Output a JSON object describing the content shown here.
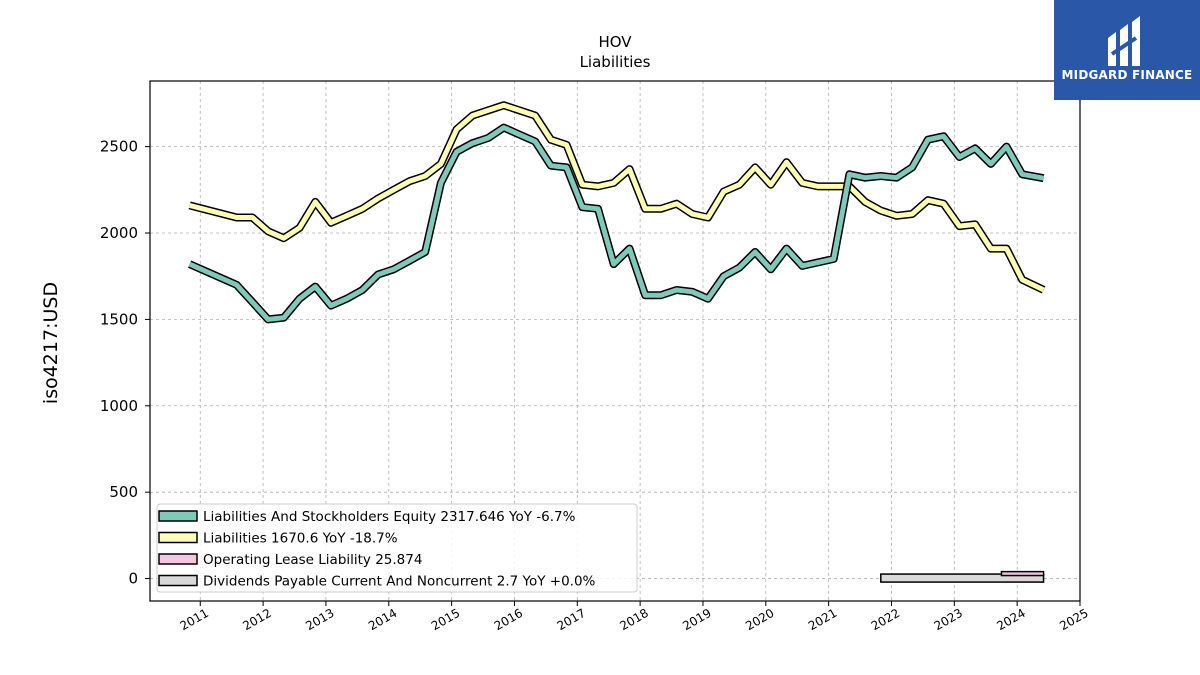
{
  "chart_data": {
    "type": "line",
    "title": "HOV",
    "subtitle": "Liabilities",
    "xlabel": "",
    "ylabel": "iso4217:USD",
    "xlim": [
      2010.2,
      2025.0
    ],
    "ylim": [
      -130,
      2880
    ],
    "x_ticks": [
      "2011",
      "2012",
      "2013",
      "2014",
      "2015",
      "2016",
      "2017",
      "2018",
      "2019",
      "2020",
      "2021",
      "2022",
      "2023",
      "2024",
      "2025"
    ],
    "y_ticks": [
      "0",
      "500",
      "1000",
      "1500",
      "2000",
      "2500"
    ],
    "grid": true,
    "legend_position": "lower-left",
    "series": [
      {
        "name": "Liabilities And Stockholders Equity",
        "legend_label": "Liabilities And Stockholders Equity  2317.646 YoY -6.7%",
        "color": "#7fc9bb",
        "x": [
          2010.83,
          2011.58,
          2011.83,
          2012.08,
          2012.33,
          2012.58,
          2012.83,
          2013.08,
          2013.33,
          2013.58,
          2013.83,
          2014.08,
          2014.33,
          2014.58,
          2014.83,
          2015.08,
          2015.33,
          2015.58,
          2015.83,
          2016.08,
          2016.33,
          2016.58,
          2016.83,
          2017.08,
          2017.33,
          2017.58,
          2017.83,
          2018.08,
          2018.33,
          2018.58,
          2018.83,
          2019.08,
          2019.33,
          2019.58,
          2019.83,
          2020.08,
          2020.33,
          2020.58,
          2020.83,
          2021.08,
          2021.33,
          2021.58,
          2021.83,
          2022.08,
          2022.33,
          2022.58,
          2022.83,
          2023.08,
          2023.33,
          2023.58,
          2023.83,
          2024.08,
          2024.42
        ],
        "y": [
          1820,
          1700,
          1600,
          1500,
          1510,
          1620,
          1690,
          1580,
          1620,
          1670,
          1760,
          1790,
          1840,
          1890,
          2290,
          2470,
          2520,
          2550,
          2610,
          2570,
          2530,
          2390,
          2380,
          2150,
          2140,
          1820,
          1910,
          1640,
          1640,
          1670,
          1660,
          1620,
          1750,
          1800,
          1890,
          1790,
          1910,
          1810,
          1830,
          1850,
          2340,
          2320,
          2330,
          2320,
          2380,
          2540,
          2560,
          2440,
          2490,
          2400,
          2500,
          2340,
          2317.646
        ]
      },
      {
        "name": "Liabilities",
        "legend_label": "Liabilities  1670.6 YoY -18.7%",
        "color": "#ffffb3",
        "x": [
          2010.83,
          2011.58,
          2011.83,
          2012.08,
          2012.33,
          2012.58,
          2012.83,
          2013.08,
          2013.33,
          2013.58,
          2013.83,
          2014.08,
          2014.33,
          2014.58,
          2014.83,
          2015.08,
          2015.33,
          2015.58,
          2015.83,
          2016.08,
          2016.33,
          2016.58,
          2016.83,
          2017.08,
          2017.33,
          2017.58,
          2017.83,
          2018.08,
          2018.33,
          2018.58,
          2018.83,
          2019.08,
          2019.33,
          2019.58,
          2019.83,
          2020.08,
          2020.33,
          2020.58,
          2020.83,
          2021.08,
          2021.33,
          2021.58,
          2021.83,
          2022.08,
          2022.33,
          2022.58,
          2022.83,
          2023.08,
          2023.33,
          2023.58,
          2023.83,
          2024.08,
          2024.42
        ],
        "y": [
          2160,
          2090,
          2090,
          2010,
          1970,
          2030,
          2180,
          2060,
          2100,
          2140,
          2200,
          2250,
          2300,
          2330,
          2400,
          2600,
          2680,
          2710,
          2740,
          2710,
          2680,
          2540,
          2510,
          2280,
          2270,
          2290,
          2370,
          2140,
          2140,
          2170,
          2110,
          2090,
          2240,
          2280,
          2380,
          2280,
          2410,
          2290,
          2270,
          2270,
          2270,
          2180,
          2130,
          2100,
          2110,
          2190,
          2170,
          2040,
          2050,
          1910,
          1910,
          1730,
          1670.6
        ]
      },
      {
        "name": "Operating Lease Liability",
        "legend_label": "Operating Lease Liability  25.874",
        "color": "#f5c6e0",
        "x": [
          2023.75,
          2024.42
        ],
        "y": [
          40,
          25.874
        ]
      },
      {
        "name": "Dividends Payable Current And Noncurrent",
        "legend_label": "Dividends Payable Current And Noncurrent  2.7 YoY +0.0%",
        "color": "#d9d9d9",
        "x": [
          2021.83,
          2024.42
        ],
        "y": [
          2.7,
          2.7
        ]
      }
    ]
  },
  "logo": {
    "text": "MIDGARD FINANCE",
    "color": "#2a57a8"
  }
}
